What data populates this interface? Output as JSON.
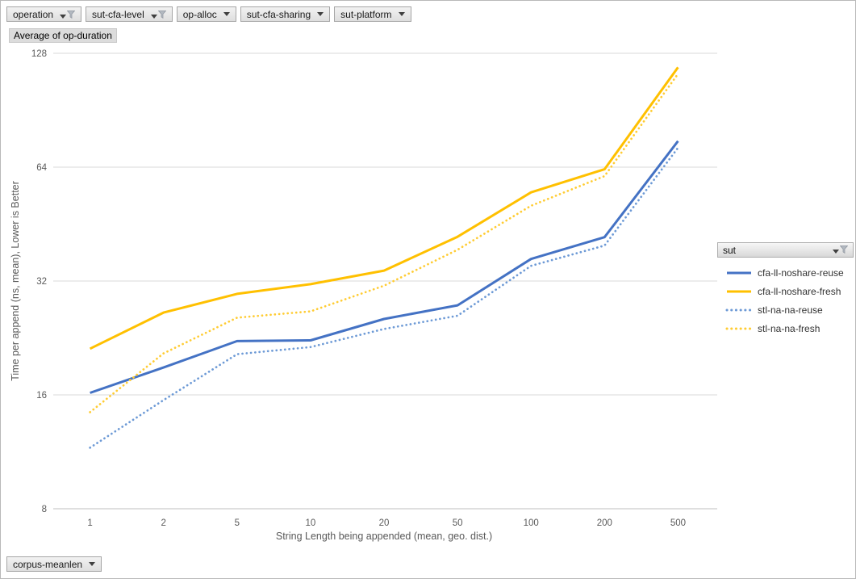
{
  "window": {
    "background": "#ffffff",
    "border_color": "#b9b9b9"
  },
  "pivot_filters": {
    "top_buttons": [
      {
        "label": "operation",
        "filtered": true
      },
      {
        "label": "sut-cfa-level",
        "filtered": true
      },
      {
        "label": "op-alloc",
        "filtered": false
      },
      {
        "label": "sut-cfa-sharing",
        "filtered": false
      },
      {
        "label": "sut-platform",
        "filtered": false
      }
    ],
    "value_field_label": "Average of op-duration",
    "bottom_button": {
      "label": "corpus-meanlen",
      "filtered": false
    }
  },
  "legend": {
    "header": {
      "label": "sut",
      "filtered": true
    },
    "position": "right"
  },
  "chart_data": {
    "type": "line",
    "title": "",
    "xlabel": "String Length  being appended (mean, geo. dist.)",
    "ylabel": "Time per append (ns, mean),  Lower is Better",
    "x_scale": "categorical",
    "y_scale": "log2",
    "ylim": [
      8,
      128
    ],
    "yticks": [
      128,
      64,
      32,
      16,
      8
    ],
    "grid": true,
    "legend_position": "right",
    "categories": [
      "1",
      "2",
      "5",
      "10",
      "20",
      "50",
      "100",
      "200",
      "500"
    ],
    "series": [
      {
        "name": "cfa-ll-noshare-reuse",
        "style": "solid",
        "color": "#4472C4",
        "values": [
          16.2,
          18.9,
          22.2,
          22.3,
          25.4,
          27.6,
          36.6,
          41.8,
          75
        ]
      },
      {
        "name": "cfa-ll-noshare-fresh",
        "style": "solid",
        "color": "#FFC000",
        "values": [
          21.2,
          26.4,
          29.6,
          31.4,
          34.1,
          41.9,
          54.9,
          63.2,
          117.5
        ]
      },
      {
        "name": "stl-na-na-reuse",
        "style": "dotted",
        "color": "#6D9AD6",
        "values": [
          11.6,
          15.5,
          20.5,
          21.4,
          23.9,
          25.9,
          35.1,
          39.7,
          72
        ]
      },
      {
        "name": "stl-na-na-fresh",
        "style": "dotted",
        "color": "#FFCC33",
        "values": [
          14.4,
          20.6,
          25.6,
          26.6,
          31.1,
          38.7,
          50.6,
          60.6,
          113
        ]
      }
    ],
    "colors": {
      "gridline": "#d9d9d9",
      "axis_line": "#bfbfbf",
      "tick_text": "#595959"
    }
  }
}
